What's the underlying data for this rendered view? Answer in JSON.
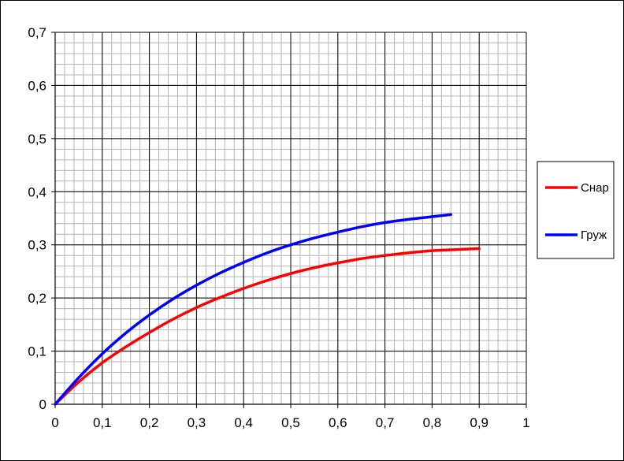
{
  "chart_data": {
    "type": "line",
    "xlim": [
      0,
      1
    ],
    "ylim": [
      0,
      0.7
    ],
    "x_ticks": [
      "0",
      "0,1",
      "0,2",
      "0,3",
      "0,4",
      "0,5",
      "0,6",
      "0,7",
      "0,8",
      "0,9",
      "1"
    ],
    "y_ticks": [
      "0",
      "0,1",
      "0,2",
      "0,3",
      "0,4",
      "0,5",
      "0,6",
      "0,7"
    ],
    "x_tick_values": [
      0,
      0.1,
      0.2,
      0.3,
      0.4,
      0.5,
      0.6,
      0.7,
      0.8,
      0.9,
      1.0
    ],
    "y_tick_values": [
      0,
      0.1,
      0.2,
      0.3,
      0.4,
      0.5,
      0.6,
      0.7
    ],
    "grid": {
      "major": true,
      "minor": true,
      "minor_x_step": 0.02,
      "minor_y_step": 0.02
    },
    "legend_position": "right",
    "series": [
      {
        "name": "Снар",
        "color": "#ff0000",
        "x": [
          0,
          0.05,
          0.1,
          0.15,
          0.2,
          0.25,
          0.3,
          0.35,
          0.4,
          0.45,
          0.5,
          0.55,
          0.6,
          0.65,
          0.7,
          0.75,
          0.8,
          0.85,
          0.9
        ],
        "y": [
          0,
          0.042,
          0.078,
          0.108,
          0.135,
          0.16,
          0.182,
          0.201,
          0.218,
          0.233,
          0.246,
          0.257,
          0.266,
          0.274,
          0.28,
          0.285,
          0.289,
          0.291,
          0.293
        ]
      },
      {
        "name": "Груж",
        "color": "#0000ff",
        "x": [
          0,
          0.05,
          0.1,
          0.15,
          0.2,
          0.25,
          0.3,
          0.35,
          0.4,
          0.45,
          0.5,
          0.55,
          0.6,
          0.65,
          0.7,
          0.75,
          0.8,
          0.84
        ],
        "y": [
          0,
          0.05,
          0.095,
          0.134,
          0.168,
          0.198,
          0.224,
          0.247,
          0.267,
          0.285,
          0.3,
          0.313,
          0.324,
          0.334,
          0.342,
          0.348,
          0.353,
          0.357
        ]
      }
    ]
  }
}
